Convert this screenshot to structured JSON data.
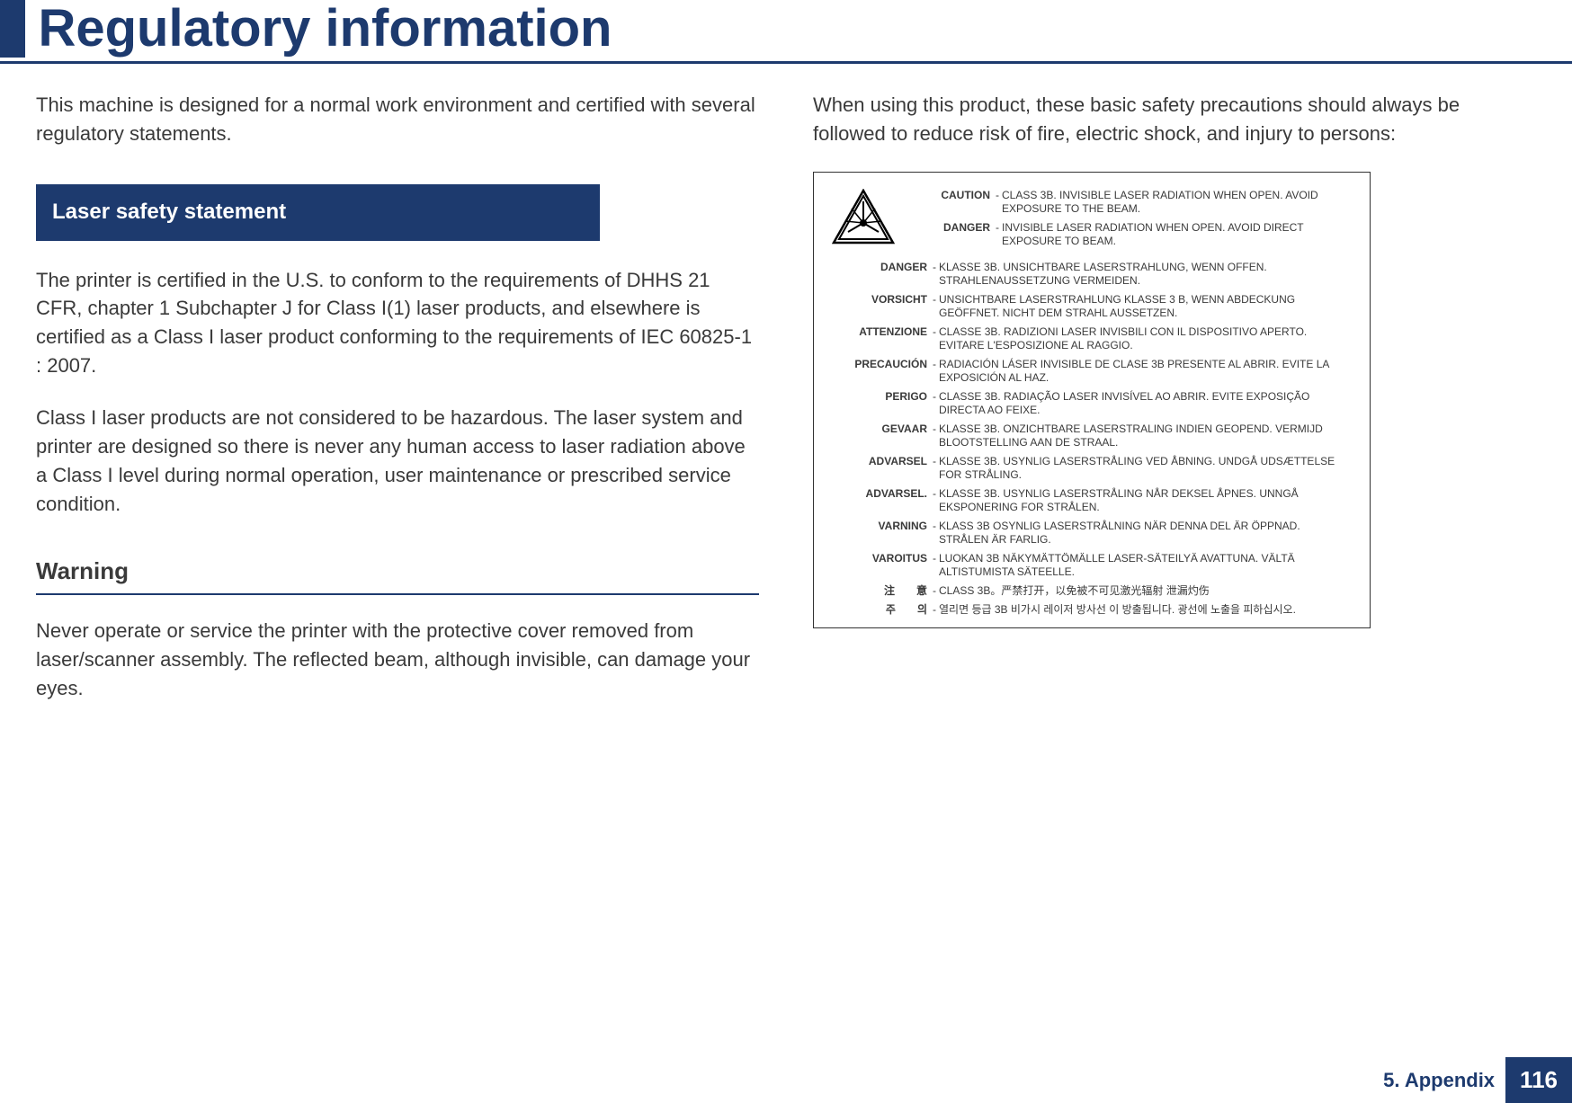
{
  "header": {
    "title": "Regulatory information"
  },
  "left": {
    "intro": "This machine is designed for a normal work environment and certified with several regulatory statements.",
    "section_title": "Laser safety statement",
    "para1": "The printer is certified in the U.S. to conform to the requirements of DHHS 21 CFR, chapter 1 Subchapter J for Class I(1) laser products, and elsewhere is certified as a Class I laser product conforming to the requirements of IEC 60825-1 : 2007.",
    "para2": "Class I laser products are not considered to be hazardous. The laser system and printer are designed so there is never any human access to laser radiation above a Class I level during normal operation, user maintenance or prescribed service condition.",
    "sub_title": "Warning",
    "para3": "Never operate or service the printer with the protective cover removed from laser/scanner assembly. The reflected beam, although invisible, can damage your eyes."
  },
  "right": {
    "intro": "When using this product, these basic safety precautions should always be followed to reduce risk of fire, electric shock, and injury to persons:",
    "label": {
      "top": [
        {
          "key": "CAUTION",
          "text": "CLASS 3B. INVISIBLE LASER RADIATION WHEN OPEN. AVOID EXPOSURE TO THE BEAM."
        },
        {
          "key": "DANGER",
          "text": "INVISIBLE LASER RADIATION WHEN OPEN. AVOID DIRECT EXPOSURE TO BEAM."
        }
      ],
      "items": [
        {
          "key": "DANGER",
          "text": "KLASSE 3B. UNSICHTBARE LASERSTRAHLUNG, WENN OFFEN. STRAHLENAUSSETZUNG VERMEIDEN."
        },
        {
          "key": "VORSICHT",
          "text": "UNSICHTBARE LASERSTRAHLUNG KLASSE 3 B, WENN ABDECKUNG GEÖFFNET. NICHT DEM STRAHL AUSSETZEN."
        },
        {
          "key": "ATTENZIONE",
          "text": "CLASSE 3B. RADIZIONI LASER INVISBILI CON IL DISPOSITIVO APERTO. EVITARE L'ESPOSIZIONE AL RAGGIO."
        },
        {
          "key": "PRECAUCIÓN",
          "text": "RADIACIÓN LÁSER INVISIBLE DE CLASE 3B PRESENTE AL ABRIR. EVITE LA EXPOSICIÓN AL HAZ."
        },
        {
          "key": "PERIGO",
          "text": "CLASSE 3B. RADIAÇÃO LASER INVISÍVEL AO ABRIR. EVITE EXPOSIÇÃO DIRECTA AO FEIXE."
        },
        {
          "key": "GEVAAR",
          "text": "KLASSE 3B. ONZICHTBARE LASERSTRALING INDIEN GEOPEND. VERMIJD BLOOTSTELLING AAN DE STRAAL."
        },
        {
          "key": "ADVARSEL",
          "text": "KLASSE 3B. USYNLIG LASERSTRÅLING VED ÅBNING. UNDGÅ UDSÆTTELSE FOR STRÅLING."
        },
        {
          "key": "ADVARSEL.",
          "text": "KLASSE 3B. USYNLIG LASERSTRÅLING NÅR DEKSEL ÅPNES. UNNGÅ EKSPONERING FOR STRÅLEN."
        },
        {
          "key": "VARNING",
          "text": "KLASS 3B OSYNLIG LASERSTRÅLNING NÄR DENNA DEL ÄR ÖPPNAD. STRÅLEN ÄR FARLIG."
        },
        {
          "key": "VAROITUS",
          "text": "LUOKAN 3B NÄKYMÄTTÖMÄLLE LASER-SÄTEILYÄ AVATTUNA. VÄLTÄ ALTISTUMISTA SÄTEELLE."
        },
        {
          "key": "注　　意",
          "text": "CLASS 3B。严禁打开，以免被不可见激光辐射 泄漏灼伤"
        },
        {
          "key": "주　　의",
          "text": "열리면 등급 3B 비가시 레이저 방사선 이 방출됩니다. 광선에 노출을 피하십시오."
        }
      ]
    }
  },
  "footer": {
    "chapter": "5. Appendix",
    "page": "116"
  },
  "style": {
    "accent_color": "#1d3a6e",
    "text_color": "#3a3a3a",
    "title_fontsize": 58,
    "body_fontsize": 22,
    "label_fontsize": 12
  }
}
